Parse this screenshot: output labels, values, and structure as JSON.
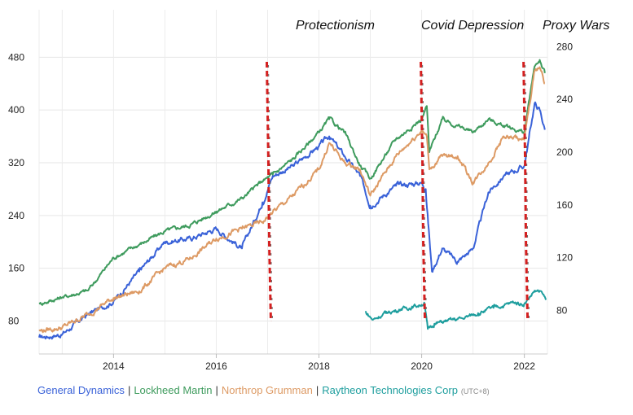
{
  "chart_data": {
    "type": "line",
    "title": "",
    "xlabel": "",
    "ylabel_left": "",
    "ylabel_right": "",
    "x_ticks": [
      "2014",
      "2016",
      "2018",
      "2020",
      "2022"
    ],
    "x_range": [
      2012.55,
      2022.45
    ],
    "y_left_ticks": [
      80,
      160,
      240,
      320,
      400,
      480
    ],
    "y_left_range": [
      30,
      510
    ],
    "y_right_ticks": [
      80,
      120,
      160,
      200,
      240,
      280
    ],
    "y_right_range": [
      47,
      287
    ],
    "grid": true,
    "legend_placement": "bottom-left",
    "timezone_note": "(UTC+8)",
    "annotations": [
      {
        "label": "Protectionism",
        "x": 2017.0
      },
      {
        "label": "Covid Depression",
        "x": 2020.0
      },
      {
        "label": "Proxy Wars",
        "x": 2022.0
      }
    ],
    "annotation_line_color": "#d42020",
    "series": [
      {
        "name": "General Dynamics",
        "color": "#3a62d8",
        "axis": "left",
        "x": [
          2012.55,
          2013.0,
          2013.5,
          2014.0,
          2014.5,
          2015.0,
          2015.5,
          2016.0,
          2016.5,
          2016.9,
          2017.1,
          2017.5,
          2018.0,
          2018.2,
          2018.5,
          2018.8,
          2019.0,
          2019.5,
          2020.0,
          2020.08,
          2020.2,
          2020.4,
          2020.7,
          2021.0,
          2021.3,
          2021.6,
          2022.0,
          2022.2,
          2022.3,
          2022.4
        ],
        "y": [
          55,
          60,
          90,
          110,
          155,
          200,
          205,
          220,
          190,
          260,
          300,
          315,
          345,
          360,
          330,
          300,
          255,
          285,
          290,
          280,
          155,
          190,
          170,
          190,
          275,
          300,
          315,
          410,
          400,
          370
        ]
      },
      {
        "name": "Lockheed Martin",
        "color": "#3e9b5d",
        "axis": "right",
        "x": [
          2012.55,
          2013.0,
          2013.5,
          2014.0,
          2014.5,
          2015.0,
          2015.5,
          2016.0,
          2016.5,
          2016.9,
          2017.1,
          2017.5,
          2018.0,
          2018.2,
          2018.5,
          2018.8,
          2019.0,
          2019.5,
          2020.0,
          2020.1,
          2020.15,
          2020.4,
          2020.7,
          2021.0,
          2021.3,
          2021.6,
          2022.0,
          2022.2,
          2022.3,
          2022.4
        ],
        "y": [
          85,
          90,
          95,
          120,
          130,
          140,
          145,
          155,
          165,
          178,
          183,
          195,
          215,
          225,
          215,
          190,
          180,
          210,
          225,
          235,
          200,
          225,
          220,
          215,
          225,
          220,
          215,
          265,
          270,
          260
        ]
      },
      {
        "name": "Northrop Grumman",
        "color": "#dd9a64",
        "axis": "left",
        "x": [
          2012.55,
          2013.0,
          2013.5,
          2014.0,
          2014.5,
          2015.0,
          2015.5,
          2016.0,
          2016.5,
          2016.9,
          2017.1,
          2017.5,
          2018.0,
          2018.2,
          2018.5,
          2018.8,
          2019.0,
          2019.5,
          2020.0,
          2020.1,
          2020.15,
          2020.4,
          2020.7,
          2021.0,
          2021.3,
          2021.6,
          2022.0,
          2022.2,
          2022.3,
          2022.4
        ],
        "y": [
          65,
          70,
          90,
          115,
          125,
          160,
          175,
          205,
          220,
          230,
          245,
          270,
          310,
          350,
          320,
          310,
          270,
          330,
          370,
          360,
          310,
          330,
          330,
          290,
          320,
          360,
          355,
          460,
          465,
          440
        ]
      },
      {
        "name": "Raytheon Technologies Corp",
        "color": "#1e9e9e",
        "axis": "right",
        "x": [
          2018.9,
          2019.05,
          2019.3,
          2019.6,
          2019.95,
          2020.05,
          2020.12,
          2020.25,
          2020.5,
          2020.8,
          2021.1,
          2021.4,
          2021.8,
          2022.0,
          2022.2,
          2022.35,
          2022.42
        ],
        "y": [
          79,
          73,
          78,
          81,
          84,
          86,
          66,
          70,
          72,
          74,
          78,
          82,
          86,
          85,
          95,
          93,
          88
        ]
      }
    ]
  }
}
